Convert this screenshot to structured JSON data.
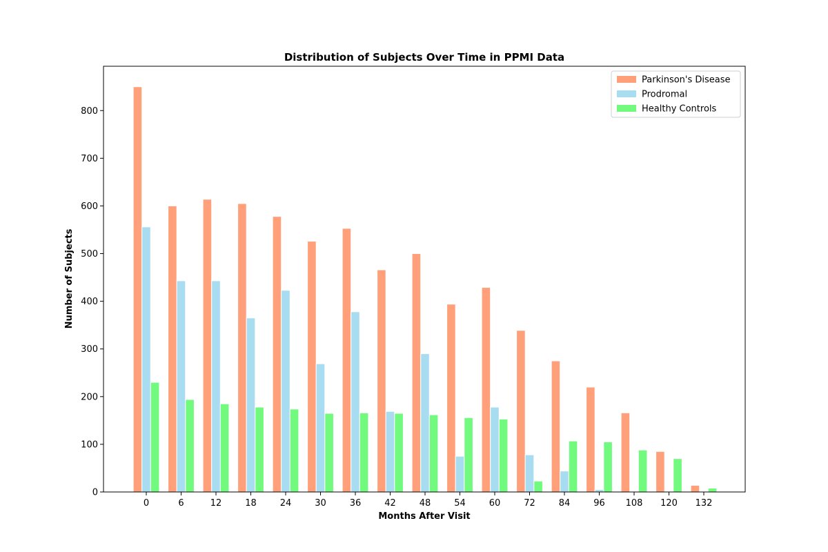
{
  "chart_data": {
    "type": "bar",
    "title": "Distribution of Subjects Over Time in PPMI Data",
    "xlabel": "Months After Visit",
    "ylabel": "Number of Subjects",
    "categories": [
      "0",
      "6",
      "12",
      "18",
      "24",
      "30",
      "36",
      "42",
      "48",
      "54",
      "60",
      "72",
      "84",
      "96",
      "108",
      "120",
      "132"
    ],
    "yticks": [
      0,
      100,
      200,
      300,
      400,
      500,
      600,
      700,
      800
    ],
    "ylim": [
      0,
      893
    ],
    "grid": false,
    "legend_position": "top-right",
    "series": [
      {
        "name": "Parkinson's Disease",
        "color": "#ffa07a",
        "values": [
          850,
          600,
          614,
          605,
          578,
          526,
          553,
          466,
          500,
          394,
          429,
          339,
          275,
          220,
          166,
          85,
          14
        ]
      },
      {
        "name": "Prodromal",
        "color": "#a8dcf1",
        "values": [
          556,
          443,
          443,
          365,
          423,
          269,
          378,
          169,
          290,
          75,
          178,
          78,
          44,
          5,
          0,
          0,
          0
        ]
      },
      {
        "name": "Healthy Controls",
        "color": "#72fa7f",
        "values": [
          230,
          194,
          185,
          178,
          174,
          165,
          166,
          165,
          162,
          156,
          153,
          23,
          107,
          105,
          88,
          70,
          8
        ]
      }
    ]
  }
}
